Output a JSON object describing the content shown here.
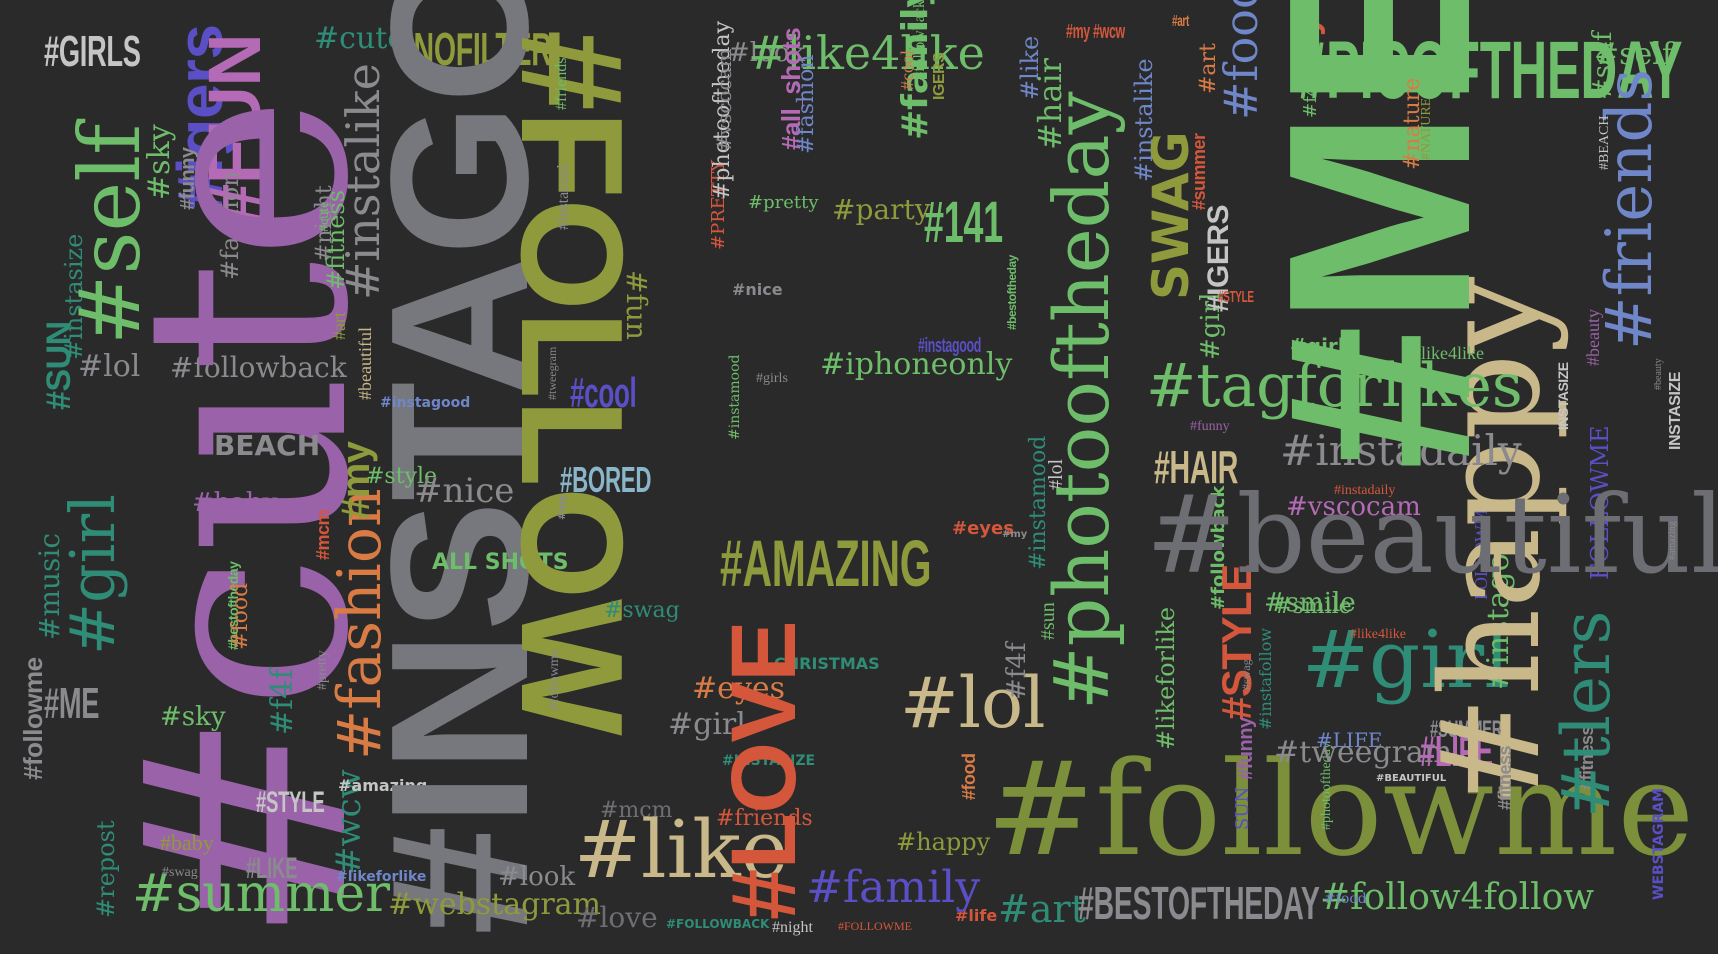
{
  "words": [
    {
      "text": "#LOVE",
      "color": "#d4573c"
    },
    {
      "text": "#ME",
      "color": "#6ebd6a"
    },
    {
      "text": "#INSTAGOOD",
      "color": "#77787d"
    },
    {
      "text": "#cute",
      "color": "#9a62a8"
    },
    {
      "text": "#followme",
      "color": "#7c8f3a"
    },
    {
      "text": "#FOLLOW",
      "color": "#8e9a3c"
    },
    {
      "text": "#happy",
      "color": "#c9b98a"
    },
    {
      "text": "#photooftheday",
      "color": "#6ebd6a"
    },
    {
      "text": "#beautiful",
      "color": "#6d6d74"
    },
    {
      "text": "#PICOFTHEDAY",
      "color": "#6ebd6a"
    },
    {
      "text": "#tagforlikes",
      "color": "#6ebd6a"
    },
    {
      "text": "#friends",
      "color": "#6f86c9"
    },
    {
      "text": "#self",
      "color": "#6ebd6a"
    },
    {
      "text": "#girl",
      "color": "#2f8c77"
    },
    {
      "text": "#smile",
      "color": "#c9b98a"
    },
    {
      "text": "#summer",
      "color": "#6ebd6a"
    },
    {
      "text": "#like",
      "color": "#c9b98a"
    },
    {
      "text": "#AMAZING",
      "color": "#8e9a3c"
    },
    {
      "text": "#lol",
      "color": "#c9b98a"
    },
    {
      "text": "#instadaily",
      "color": "#8a8a8f"
    },
    {
      "text": "#like4like",
      "color": "#6ebd6a"
    },
    {
      "text": "#NOFILTER",
      "color": "#8e9a3c"
    },
    {
      "text": "#fashion",
      "color": "#d97b45"
    },
    {
      "text": "#instalike",
      "color": "#8a8a8f"
    },
    {
      "text": "#FUN",
      "color": "#b46ab5"
    },
    {
      "text": "#follow4follow",
      "color": "#6ebd6a"
    },
    {
      "text": "#BESTOFTHEDAY",
      "color": "#8a8a8f"
    },
    {
      "text": "#webstagram",
      "color": "#8e9a3c"
    },
    {
      "text": "#iphoneonly",
      "color": "#6ebd6a"
    },
    {
      "text": "#instamood",
      "color": "#2f8c77"
    },
    {
      "text": "#141",
      "color": "#6ebd6a"
    },
    {
      "text": "#food",
      "color": "#6f86c9"
    },
    {
      "text": "#tweegram",
      "color": "#8a8a8f"
    },
    {
      "text": "#LIFE",
      "color": "#b46ab5"
    },
    {
      "text": "#art",
      "color": "#2f8c77"
    },
    {
      "text": "#family",
      "color": "#5a4fc4"
    },
    {
      "text": "#happy",
      "color": "#8e9a3c"
    },
    {
      "text": "#eyes",
      "color": "#d97b45"
    },
    {
      "text": "#love",
      "color": "#6d6d74"
    },
    {
      "text": "#mcm",
      "color": "#6d6d74"
    },
    {
      "text": "#cool",
      "color": "#5a4fc4"
    },
    {
      "text": "#BORED",
      "color": "#8ab6c9"
    },
    {
      "text": "#look",
      "color": "#8a8a8f"
    },
    {
      "text": "#cute",
      "color": "#2f8c77"
    },
    {
      "text": "#GIRLS",
      "color": "#c5c5c5"
    },
    {
      "text": "#sky",
      "color": "#6ebd6a"
    },
    {
      "text": "#igers",
      "color": "#5a4fc4"
    },
    {
      "text": "#instasize",
      "color": "#2f8c77"
    },
    {
      "text": "#lol",
      "color": "#8a8a8f"
    },
    {
      "text": "#followback",
      "color": "#8a8a8f"
    },
    {
      "text": "#SUN",
      "color": "#2f8c77"
    },
    {
      "text": "#music",
      "color": "#2f8c77"
    },
    {
      "text": "#ME",
      "color": "#8a8a8f"
    },
    {
      "text": "#sky",
      "color": "#6ebd6a"
    },
    {
      "text": "#f4f",
      "color": "#2f8c77"
    },
    {
      "text": "#baby",
      "color": "#9a62a8"
    },
    {
      "text": "#baby",
      "color": "#8e9a3c"
    },
    {
      "text": "#STYLE",
      "color": "#c5c5c5"
    },
    {
      "text": "#LIKE",
      "color": "#8a8a8f"
    },
    {
      "text": "#wcw",
      "color": "#2f8c77"
    },
    {
      "text": "#amazing",
      "color": "#c5c5c5"
    },
    {
      "text": "#likeforlike",
      "color": "#6f86c9"
    },
    {
      "text": "#repost",
      "color": "#2f8c77"
    },
    {
      "text": "#nice",
      "color": "#8a8a8f"
    },
    {
      "text": "#style",
      "color": "#6ebd6a"
    },
    {
      "text": "BEACH",
      "color": "#8a8a8f"
    },
    {
      "text": "#my",
      "color": "#8e9a3c"
    },
    {
      "text": "#beautiful",
      "color": "#c9b98a"
    },
    {
      "text": "#instagood",
      "color": "#6f86c9"
    },
    {
      "text": "ALL SHOTS",
      "color": "#6ebd6a"
    },
    {
      "text": "#swag",
      "color": "#2f8c77"
    },
    {
      "text": "#look",
      "color": "#8a8a8f"
    },
    {
      "text": "#party",
      "color": "#8e9a3c"
    },
    {
      "text": "#instacool",
      "color": "#8a8a8f"
    },
    {
      "text": "#fun",
      "color": "#8e9a3c"
    },
    {
      "text": "#pretty",
      "color": "#6ebd6a"
    },
    {
      "text": "#nature",
      "color": "#d97b45"
    },
    {
      "text": "#night",
      "color": "#c5c5c5"
    },
    {
      "text": "#friends",
      "color": "#d4573c"
    },
    {
      "text": "#girl",
      "color": "#8a8a8f"
    },
    {
      "text": "CHRISTMAS",
      "color": "#2f8c77"
    },
    {
      "text": "#INSTASIZE",
      "color": "#2f8c77"
    },
    {
      "text": "#HAIR",
      "color": "#c9b98a"
    },
    {
      "text": "#vscocam",
      "color": "#b46ab5"
    },
    {
      "text": "#smile",
      "color": "#6ebd6a"
    },
    {
      "text": "#instafollow",
      "color": "#2f8c77"
    },
    {
      "text": "#STYLE",
      "color": "#d4573c"
    },
    {
      "text": "#likeforlike",
      "color": "#6ebd6a"
    },
    {
      "text": "#instago",
      "color": "#6ebd6a"
    },
    {
      "text": "#SUMMER",
      "color": "#8a8a8f"
    },
    {
      "text": "#tlers",
      "color": "#2f8c77"
    },
    {
      "text": "#fitness",
      "color": "#6ebd6a"
    },
    {
      "text": "#instalike",
      "color": "#6f86c9"
    },
    {
      "text": "#funny",
      "color": "#9a62a8"
    },
    {
      "text": "#girl",
      "color": "#6ebd6a"
    },
    {
      "text": "#like4like",
      "color": "#6ebd6a"
    },
    {
      "text": "#beauty",
      "color": "#9a62a8"
    },
    {
      "text": "SWAG",
      "color": "#8e9a3c"
    },
    {
      "text": "#IGERS",
      "color": "#c5c5c5"
    },
    {
      "text": "INSTASIZE",
      "color": "#c5c5c5"
    },
    {
      "text": "WEBSTAGRAM",
      "color": "#5a4fc4"
    },
    {
      "text": "#FOLLOWBACK",
      "color": "#2f8c77"
    },
    {
      "text": "#summer",
      "color": "#d4573c"
    },
    {
      "text": "#instagood",
      "color": "#5a4fc4"
    },
    {
      "text": "#bestoftheday",
      "color": "#6ebd6a"
    },
    {
      "text": "#mcm",
      "color": "#d4573c"
    },
    {
      "text": "#food",
      "color": "#d97b45"
    },
    {
      "text": "#pretty",
      "color": "#8a8a8f"
    },
    {
      "text": "#cute",
      "color": "#6ebd6a"
    },
    {
      "text": "#night",
      "color": "#8a8a8f"
    },
    {
      "text": "#like",
      "color": "#6f86c9"
    },
    {
      "text": "#LIFE",
      "color": "#6f86c9"
    },
    {
      "text": "#hair",
      "color": "#6ebd6a"
    },
    {
      "text": "#art",
      "color": "#d97b45"
    },
    {
      "text": "#my #wcw",
      "color": "#d4573c"
    },
    {
      "text": "IGERS",
      "color": "#8e9a3c"
    },
    {
      "text": "#followme",
      "color": "#8a8a8f"
    },
    {
      "text": "#friends",
      "color": "#6ebd6a"
    },
    {
      "text": "#f4f",
      "color": "#6ebd6a"
    },
    {
      "text": "#instalike",
      "color": "#6f86c9"
    },
    {
      "text": "#instadaily",
      "color": "#d4573c"
    },
    {
      "text": "#like4like",
      "color": "#d4573c"
    },
    {
      "text": "FOLLOWME",
      "color": "#5a4fc4"
    },
    {
      "text": "#BEAUTIFUL",
      "color": "#c5c5c5"
    },
    {
      "text": "#fitness",
      "color": "#8a8a8f"
    },
    {
      "text": "#pretty",
      "color": "#8a8a8f"
    },
    {
      "text": "#family",
      "color": "#6ebd6a"
    },
    {
      "text": "#iphoneonly",
      "color": "#5a4fc4"
    },
    {
      "text": "#141",
      "color": "#b46ab5"
    },
    {
      "text": "#party",
      "color": "#8a8a8f"
    },
    {
      "text": "SUN",
      "color": "#5a4fc4"
    },
    {
      "text": "#photooftheday",
      "color": "#6ebd6a"
    },
    {
      "text": "#amazing",
      "color": "#d97b45"
    },
    {
      "text": "#FOLLOWME",
      "color": "#d4573c"
    },
    {
      "text": "#life",
      "color": "#d4573c"
    },
    {
      "text": "#love",
      "color": "#d4573c"
    },
    {
      "text": "#eyes",
      "color": "#d4573c"
    },
    {
      "text": "#cute",
      "color": "#6ebd6a"
    },
    {
      "text": "#family",
      "color": "#6ebd6a"
    },
    {
      "text": "#cool",
      "color": "#d97b45"
    },
    {
      "text": "#followback",
      "color": "#6ebd6a"
    },
    {
      "text": "#all_shots",
      "color": "#b46ab5"
    },
    {
      "text": "#tweegram",
      "color": "#8a8a8f"
    },
    {
      "text": "#fashion",
      "color": "#6f86c9"
    },
    {
      "text": "#vscocam",
      "color": "#8a8a8f"
    },
    {
      "text": "#nice",
      "color": "#8a8a8f"
    },
    {
      "text": "#girls",
      "color": "#8a8a8f"
    },
    {
      "text": "#instamood",
      "color": "#6ebd6a"
    },
    {
      "text": "#photooftheday",
      "color": "#c5c5c5"
    },
    {
      "text": "#PRETTY",
      "color": "#d4573c"
    },
    {
      "text": "#sun",
      "color": "#6ebd6a"
    },
    {
      "text": "#lol",
      "color": "#c5c5c5"
    },
    {
      "text": "#f4f",
      "color": "#8a8a8f"
    },
    {
      "text": "#art",
      "color": "#8e9a3c"
    },
    {
      "text": "#funny",
      "color": "#8a8a8f"
    },
    {
      "text": "#fashion",
      "color": "#8a8a8f"
    },
    {
      "text": "#followme",
      "color": "#8a8a8f"
    },
    {
      "text": "#my",
      "color": "#8a8a8f"
    },
    {
      "text": "#swag",
      "color": "#8a8a8f"
    },
    {
      "text": "#NATURE",
      "color": "#8e9a3c"
    },
    {
      "text": "#BEACH",
      "color": "#c5c5c5"
    },
    {
      "text": "#beauty",
      "color": "#8a8a8f"
    },
    {
      "text": "#amazing",
      "color": "#8a8a8f"
    },
    {
      "text": "#repost",
      "color": "#8a8a8f"
    },
    {
      "text": "#nofilter",
      "color": "#8a8a8f"
    },
    {
      "text": "#instasize",
      "color": "#8a8a8f"
    }
  ]
}
